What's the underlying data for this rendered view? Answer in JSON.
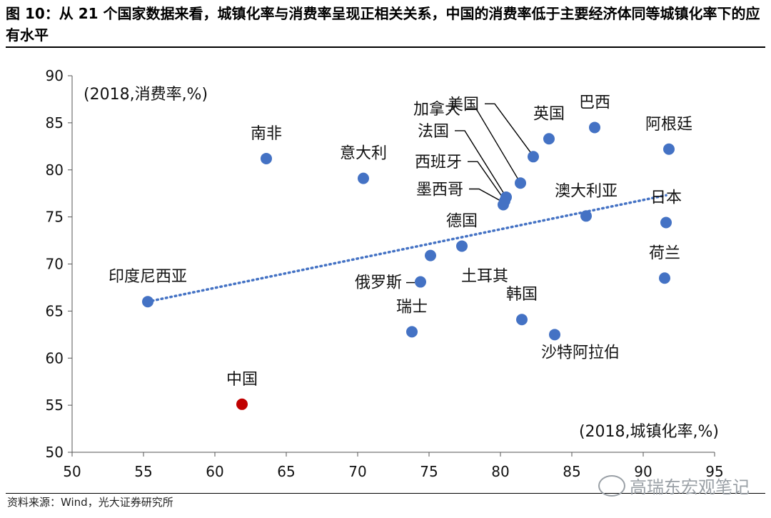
{
  "title": "图 10：从 21 个国家数据来看，城镇化率与消费率呈现正相关关系，中国的消费率低于主要经济体同等城镇化率下的应有水平",
  "source": "资料来源：Wind，光大证券研究所",
  "watermark": "高瑞东宏观笔记",
  "chart_data": {
    "type": "scatter",
    "xlabel": "(2018,城镇化率,%)",
    "ylabel": "(2018,消费率,%)",
    "xlim": [
      50,
      95
    ],
    "ylim": [
      50,
      90
    ],
    "xticks": [
      50,
      55,
      60,
      65,
      70,
      75,
      80,
      85,
      90,
      95
    ],
    "yticks": [
      50,
      55,
      60,
      65,
      70,
      75,
      80,
      85,
      90
    ],
    "colors": {
      "point": "#4472C4",
      "highlight": "#C00000",
      "trend": "#4472C4"
    },
    "points": [
      {
        "name": "美国",
        "x": 82.3,
        "y": 81.4
      },
      {
        "name": "加拿大",
        "x": 81.4,
        "y": 78.6
      },
      {
        "name": "法国",
        "x": 80.4,
        "y": 77.1
      },
      {
        "name": "西班牙",
        "x": 80.3,
        "y": 76.7
      },
      {
        "name": "墨西哥",
        "x": 80.2,
        "y": 76.3
      },
      {
        "name": "英国",
        "x": 83.4,
        "y": 83.3
      },
      {
        "name": "巴西",
        "x": 86.6,
        "y": 84.5
      },
      {
        "name": "阿根廷",
        "x": 91.8,
        "y": 82.2
      },
      {
        "name": "南非",
        "x": 63.6,
        "y": 81.2
      },
      {
        "name": "意大利",
        "x": 70.4,
        "y": 79.1
      },
      {
        "name": "澳大利亚",
        "x": 86.0,
        "y": 75.1
      },
      {
        "name": "日本",
        "x": 91.6,
        "y": 74.4
      },
      {
        "name": "德国",
        "x": 77.3,
        "y": 71.9
      },
      {
        "name": "荷兰",
        "x": 91.5,
        "y": 68.5
      },
      {
        "name": "印度尼西亚",
        "x": 55.3,
        "y": 66.0
      },
      {
        "name": "俄罗斯",
        "x": 74.4,
        "y": 68.1
      },
      {
        "name": "土耳其",
        "x": 75.1,
        "y": 70.9
      },
      {
        "name": "瑞士",
        "x": 73.8,
        "y": 62.8
      },
      {
        "name": "韩国",
        "x": 81.5,
        "y": 64.1
      },
      {
        "name": "沙特阿拉伯",
        "x": 83.8,
        "y": 62.5
      },
      {
        "name": "中国",
        "x": 61.9,
        "y": 55.1,
        "highlight": true
      }
    ],
    "trendline": {
      "style": "dotted",
      "from": [
        55.3,
        66.0
      ],
      "to": [
        91.6,
        77.3
      ]
    }
  }
}
